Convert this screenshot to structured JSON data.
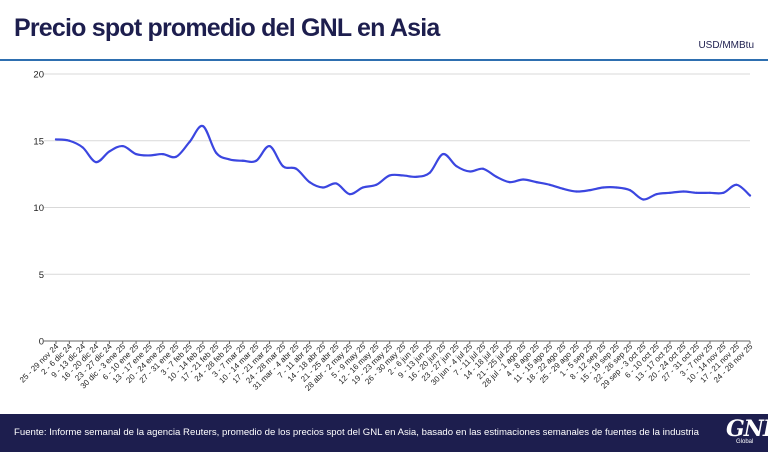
{
  "header": {
    "title": "Precio spot promedio del GNL en Asia",
    "unit": "USD/MMBtu"
  },
  "footer": {
    "source": "Fuente: Informe semanal de la agencia Reuters, promedio de los precios spot del GNL en Asia, basado en las estimaciones semanales de fuentes de la industria",
    "logo_text": "GNL",
    "logo_subtext": "Global"
  },
  "colors": {
    "line": "#3b46e0",
    "navy": "#1d1e4e",
    "grid": "#d9d9d9",
    "rule": "#2e6fb0"
  },
  "chart_data": {
    "type": "line",
    "title": "Precio spot promedio del GNL en Asia",
    "ylabel": "USD/MMBtu",
    "ylim": [
      0,
      20
    ],
    "yticks": [
      0,
      5,
      10,
      15,
      20
    ],
    "grid": "horizontal",
    "categories": [
      "25 - 29 nov 24",
      "2 - 6 dic 24",
      "9 - 13 dic 24",
      "16 - 20 dic 24",
      "23 - 27 dic 24",
      "30 dic - 3 ene 25",
      "6 - 10 ene 25",
      "13 - 17 ene 25",
      "20 - 24 ene 25",
      "27 - 31 ene 25",
      "3 - 7 feb 25",
      "10 - 14 feb 25",
      "17 - 21 feb 25",
      "24 - 28 feb 25",
      "3 - 7 mar 25",
      "10 - 14 mar 25",
      "17 - 21 mar 25",
      "24 - 28 mar 25",
      "31 mar - 4 abr 25",
      "7 - 11 abr 25",
      "14 - 18 abr 25",
      "21 - 25 abr 25",
      "28 abr - 2 may 25",
      "5 - 9 may 25",
      "12 - 16 may 25",
      "19 - 23 may 25",
      "26 - 30 may 25",
      "2 - 6 jun 25",
      "9 - 13 jun 25",
      "16 - 20 jun 25",
      "23 - 27 jun 25",
      "30 jun - 4 jul 25",
      "7 - 11 jul 25",
      "14 - 18 jul 25",
      "21 - 25 jul 25",
      "28 jul - 1 ago 25",
      "4 - 8 ago 25",
      "11 - 15 ago 25",
      "18 - 22 ago 25",
      "25 - 29 ago 25",
      "1 - 5 sep 25",
      "8 - 12 sep 25",
      "15 - 19 sep 25",
      "22 - 26 sep 25",
      "29 sep - 3 oct 25",
      "6 - 10 oct 25",
      "13 - 17 oct 25",
      "20 - 24 oct 25",
      "27 - 31 oct 25",
      "3 - 7 nov 25",
      "10 - 14 nov 25",
      "17 - 21 nov 25",
      "24 - 28 nov 25"
    ],
    "series": [
      {
        "values": [
          15.1,
          15.0,
          14.5,
          13.4,
          14.2,
          14.6,
          14.0,
          13.9,
          14.0,
          13.8,
          14.9,
          16.1,
          14.1,
          13.6,
          13.5,
          13.5,
          14.6,
          13.1,
          12.9,
          11.9,
          11.5,
          11.8,
          11.0,
          11.5,
          11.7,
          12.4,
          12.4,
          12.3,
          12.6,
          14.0,
          13.1,
          12.7,
          12.9,
          12.3,
          11.9,
          12.1,
          11.9,
          11.7,
          11.4,
          11.2,
          11.3,
          11.5,
          11.5,
          11.3,
          10.6,
          11.0,
          11.1,
          11.2,
          11.1,
          11.1,
          11.1,
          11.7,
          10.9
        ]
      }
    ]
  }
}
